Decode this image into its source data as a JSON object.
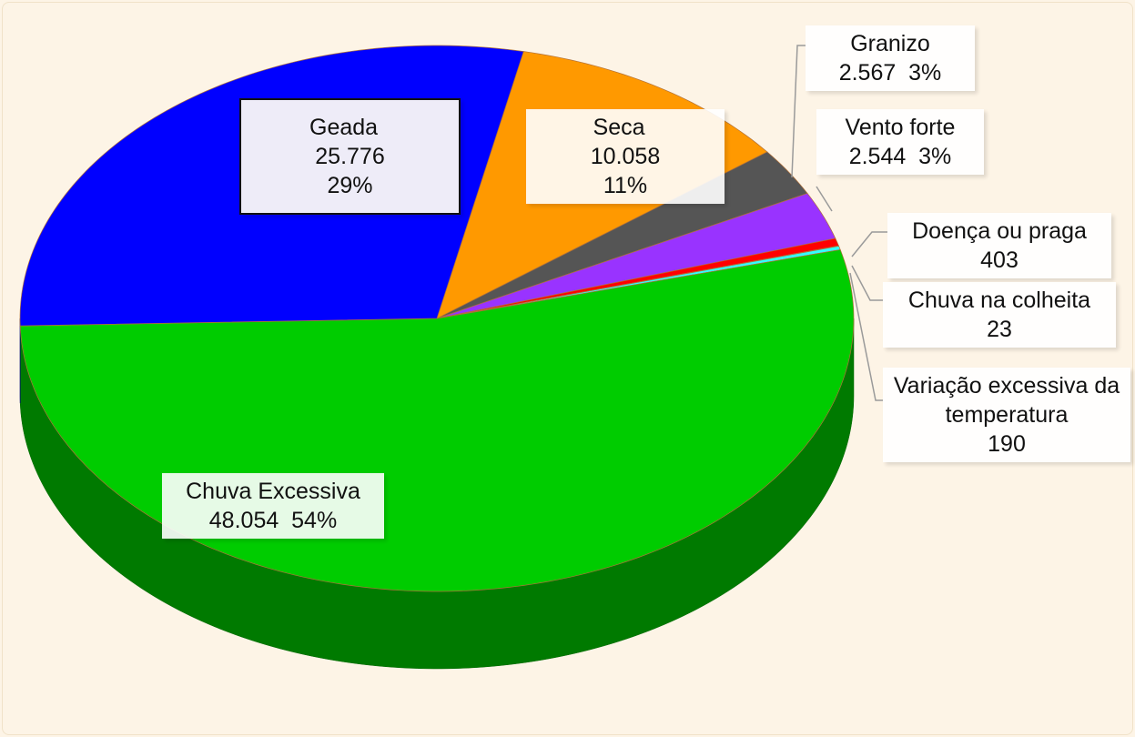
{
  "chart_data": {
    "type": "pie3d",
    "categories": [
      "Seca",
      "Granizo",
      "Vento forte",
      "Doença ou praga",
      "Chuva na colheita",
      "Variação excessiva da temperatura",
      "Chuva Excessiva",
      "Geada"
    ],
    "values": [
      10058,
      2567,
      2544,
      403,
      23,
      190,
      48054,
      25776
    ],
    "value_labels": [
      "10.058",
      "2.567",
      "2.544",
      "403",
      "23",
      "190",
      "48.054",
      "25.776"
    ],
    "percent_labels": [
      "11%",
      "3%",
      "3%",
      null,
      null,
      null,
      "54%",
      "29%"
    ],
    "colors": [
      "#ff9900",
      "#555555",
      "#9933ff",
      "#ff0000",
      "#ff8080",
      "#33ffff",
      "#00cc00",
      "#0000ff"
    ]
  }
}
